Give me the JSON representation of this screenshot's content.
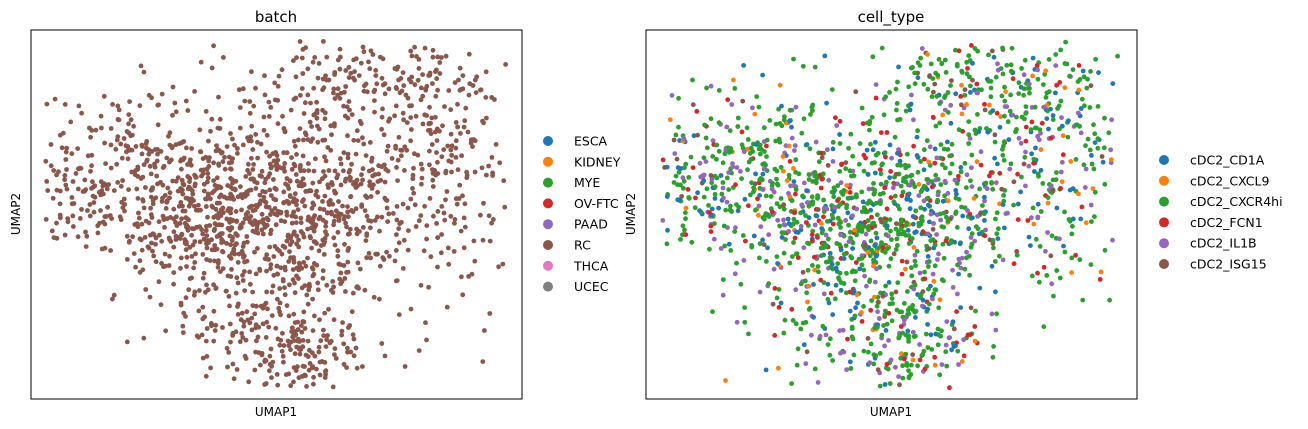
{
  "chart_data": [
    {
      "type": "scatter",
      "title": "batch",
      "xlabel": "UMAP1",
      "ylabel": "UMAP2",
      "xticks": false,
      "yticks": false,
      "legend_position": "right",
      "legend": [
        {
          "name": "ESCA",
          "color": "#1f77b4"
        },
        {
          "name": "KIDNEY",
          "color": "#ff7f0e"
        },
        {
          "name": "MYE",
          "color": "#2ca02c"
        },
        {
          "name": "OV-FTC",
          "color": "#d62728"
        },
        {
          "name": "PAAD",
          "color": "#9467bd"
        },
        {
          "name": "RC",
          "color": "#8c564b"
        },
        {
          "name": "THCA",
          "color": "#e377c2"
        },
        {
          "name": "UCEC",
          "color": "#7f7f7f"
        }
      ],
      "point_colors": {
        "RC": 1.0
      }
    },
    {
      "type": "scatter",
      "title": "cell_type",
      "xlabel": "UMAP1",
      "ylabel": "UMAP2",
      "xticks": false,
      "yticks": false,
      "legend_position": "right",
      "legend": [
        {
          "name": "cDC2_CD1A",
          "color": "#1f77b4"
        },
        {
          "name": "cDC2_CXCL9",
          "color": "#ff7f0e"
        },
        {
          "name": "cDC2_CXCR4hi",
          "color": "#2ca02c"
        },
        {
          "name": "cDC2_FCN1",
          "color": "#d62728"
        },
        {
          "name": "cDC2_IL1B",
          "color": "#9467bd"
        },
        {
          "name": "cDC2_ISG15",
          "color": "#8c564b"
        }
      ],
      "point_colors": {
        "cDC2_CXCR4hi": 0.52,
        "cDC2_IL1B": 0.17,
        "cDC2_CD1A": 0.14,
        "cDC2_FCN1": 0.08,
        "cDC2_CXCL9": 0.05,
        "cDC2_ISG15": 0.04
      }
    }
  ]
}
